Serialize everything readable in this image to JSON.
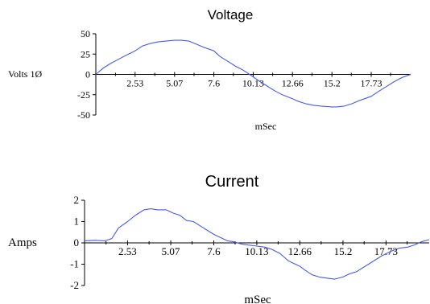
{
  "chart_data": [
    {
      "type": "line",
      "title": "Voltage",
      "xlabel": "mSec",
      "ylabel": "Volts 1Ø",
      "xlim": [
        0,
        20.27
      ],
      "ylim": [
        -50,
        50
      ],
      "x_tick_labels": [
        "2.53",
        "5.07",
        "7.6",
        "10.13",
        "12.66",
        "15.2",
        "17.73"
      ],
      "y_tick_labels": [
        "50",
        "25",
        "0",
        "-25",
        "-50"
      ],
      "grid": false,
      "series": [
        {
          "color": "#4a5ae8",
          "x": [
            0,
            0.5,
            1.0,
            1.5,
            2.0,
            2.53,
            3.0,
            3.5,
            4.0,
            4.5,
            5.07,
            5.5,
            6.0,
            6.5,
            7.0,
            7.6,
            8.0,
            8.5,
            9.0,
            9.5,
            10.13,
            10.5,
            11.0,
            11.5,
            12.0,
            12.66,
            13.0,
            13.5,
            14.0,
            14.5,
            15.2,
            15.5,
            16.0,
            16.5,
            17.0,
            17.73,
            18.2,
            18.7,
            19.2,
            19.7,
            20.27
          ],
          "y": [
            0,
            8,
            14,
            19,
            24,
            29,
            35,
            38,
            40,
            41,
            42,
            42,
            41,
            37,
            33,
            29,
            22,
            16,
            10,
            5,
            -3,
            -8,
            -14,
            -20,
            -25,
            -30,
            -33,
            -36,
            -38,
            -39,
            -40,
            -40,
            -39,
            -36,
            -32,
            -27,
            -21,
            -15,
            -9,
            -4,
            0
          ]
        }
      ]
    },
    {
      "type": "line",
      "title": "Current",
      "xlabel": "mSec",
      "ylabel": "Amps",
      "xlim": [
        0,
        20.27
      ],
      "ylim": [
        -2,
        2
      ],
      "x_tick_labels": [
        "2.53",
        "5.07",
        "7.6",
        "10.13",
        "12.66",
        "15.2",
        "17.73"
      ],
      "y_tick_labels": [
        "2",
        "1",
        "0",
        "-1",
        "-2"
      ],
      "grid": false,
      "series": [
        {
          "color": "#4a5ae8",
          "x": [
            0,
            0.6,
            1.2,
            1.6,
            2.0,
            2.53,
            3.0,
            3.5,
            3.9,
            4.3,
            4.8,
            5.2,
            5.6,
            6.0,
            6.4,
            6.8,
            7.2,
            7.6,
            8.0,
            8.4,
            8.8,
            9.2,
            9.6,
            10.13,
            10.6,
            11.0,
            11.5,
            12.0,
            12.66,
            13.0,
            13.4,
            13.8,
            14.2,
            14.7,
            15.2,
            15.6,
            16.0,
            16.5,
            17.0,
            17.5,
            18.0,
            18.5,
            19.0,
            19.4,
            19.8,
            20.27
          ],
          "y": [
            0.1,
            0.12,
            0.1,
            0.2,
            0.7,
            1.0,
            1.3,
            1.55,
            1.6,
            1.55,
            1.55,
            1.4,
            1.3,
            1.05,
            1.0,
            0.8,
            0.6,
            0.4,
            0.25,
            0.1,
            0.05,
            -0.05,
            -0.1,
            -0.15,
            -0.2,
            -0.3,
            -0.5,
            -0.85,
            -1.1,
            -1.3,
            -1.5,
            -1.6,
            -1.65,
            -1.7,
            -1.6,
            -1.45,
            -1.35,
            -1.1,
            -0.85,
            -0.6,
            -0.4,
            -0.25,
            -0.2,
            -0.1,
            0.05,
            0.15
          ]
        }
      ]
    }
  ]
}
